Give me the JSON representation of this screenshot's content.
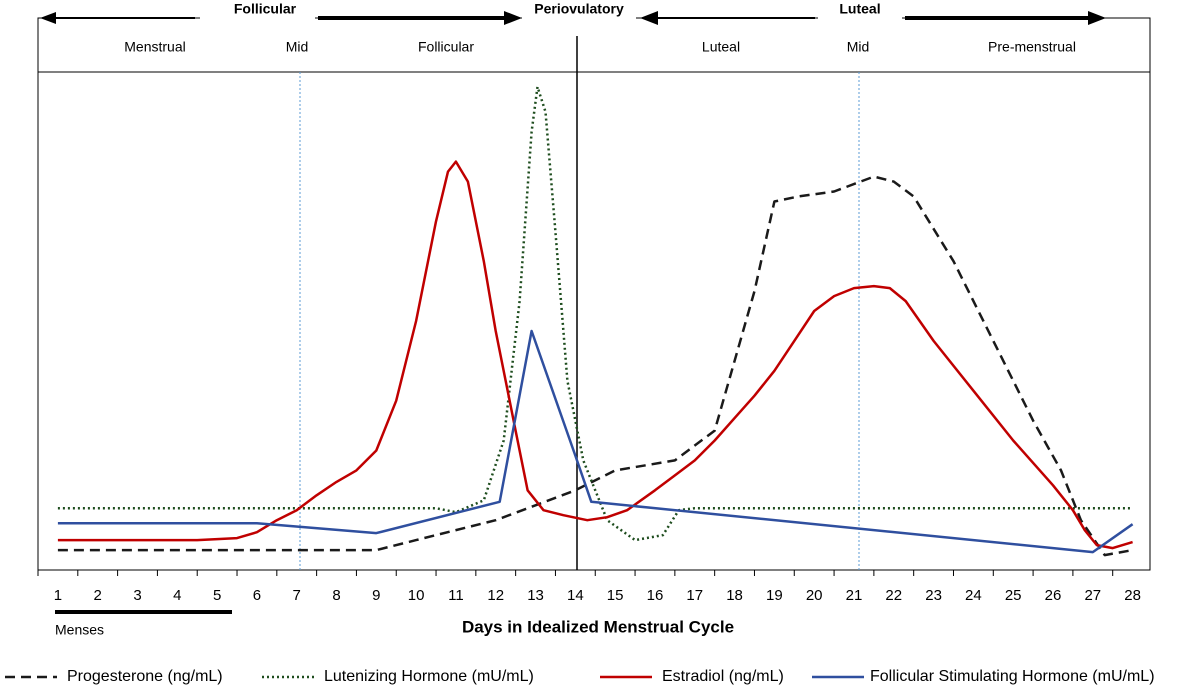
{
  "chart_data": {
    "type": "line",
    "title": "Days in Idealized Menstrual Cycle",
    "phases_top": [
      "Follicular",
      "Periovulatory",
      "Luteal"
    ],
    "phases": [
      "Menstrual",
      "Mid",
      "Follicular",
      "Luteal",
      "Mid",
      "Pre-menstrual"
    ],
    "menses_label": "Menses",
    "xlim": [
      0.5,
      28.5
    ],
    "xticks": [
      1,
      2,
      3,
      4,
      5,
      6,
      7,
      8,
      9,
      10,
      11,
      12,
      13,
      14,
      15,
      16,
      17,
      18,
      19,
      20,
      21,
      22,
      23,
      24,
      25,
      26,
      27,
      28
    ],
    "ylim": [
      0,
      100
    ],
    "series": [
      {
        "name": "Progesterone (ng/mL)",
        "color": "#1a1a1a",
        "dash": "dashed",
        "x": [
          1,
          9,
          10,
          12,
          13,
          14,
          15,
          16.5,
          17.5,
          18.5,
          19,
          19.6,
          20.5,
          21.5,
          22,
          22.5,
          23.5,
          24.5,
          25.5,
          26.2,
          26.7,
          27.3,
          28
        ],
        "values": [
          4,
          4,
          6,
          10,
          13,
          16,
          20,
          22,
          28,
          56,
          74,
          75,
          76,
          79,
          78,
          75,
          62,
          46,
          30,
          20,
          10,
          3,
          4
        ]
      },
      {
        "name": "Lutenizing Hormone (mU/mL)",
        "color": "#1e4d1e",
        "dash": "dotted",
        "x": [
          1,
          10.5,
          11,
          11.7,
          12.2,
          12.6,
          12.9,
          13.05,
          13.25,
          13.5,
          13.8,
          14.2,
          14.8,
          15.5,
          16.2,
          16.6,
          17,
          28
        ],
        "values": [
          12.4,
          12.4,
          11.6,
          14,
          26,
          54,
          88,
          97,
          92,
          68,
          38,
          22,
          10,
          6,
          7,
          12,
          12.4,
          12.4
        ]
      },
      {
        "name": "Estradiol (ng/mL)",
        "color": "#c00000",
        "dash": "solid",
        "x": [
          1,
          4.5,
          5.5,
          6,
          6.5,
          7,
          7.5,
          8,
          8.5,
          9,
          9.5,
          10,
          10.5,
          10.8,
          11,
          11.3,
          11.7,
          12,
          12.5,
          12.8,
          13.2,
          13.7,
          14.3,
          14.8,
          15.3,
          16,
          16.5,
          17,
          17.5,
          18,
          18.5,
          19,
          19.5,
          20,
          20.5,
          21,
          21.5,
          21.9,
          22.3,
          23,
          24,
          25,
          26,
          26.5,
          26.8,
          27.1,
          27.5,
          28
        ],
        "values": [
          6,
          6,
          6.4,
          7.6,
          10,
          12,
          15,
          17.7,
          20,
          24,
          34,
          50,
          70,
          80,
          82,
          78,
          62,
          48,
          28,
          16,
          12,
          11,
          10,
          10.6,
          12,
          16,
          19,
          22,
          26,
          30.5,
          35,
          40,
          46,
          52,
          55,
          56.6,
          57,
          56.6,
          54,
          46,
          36,
          26,
          17,
          12,
          8,
          5,
          4.4,
          5.6
        ]
      },
      {
        "name": "Follicular Stimulating Hormone (mU/mL)",
        "color": "#2f4f9f",
        "dash": "solid",
        "x": [
          1,
          6,
          9,
          12.1,
          12.9,
          14,
          14.4,
          27,
          28
        ],
        "values": [
          9.4,
          9.4,
          7.4,
          13.7,
          48,
          23,
          13.7,
          3.6,
          9.2
        ]
      }
    ]
  }
}
